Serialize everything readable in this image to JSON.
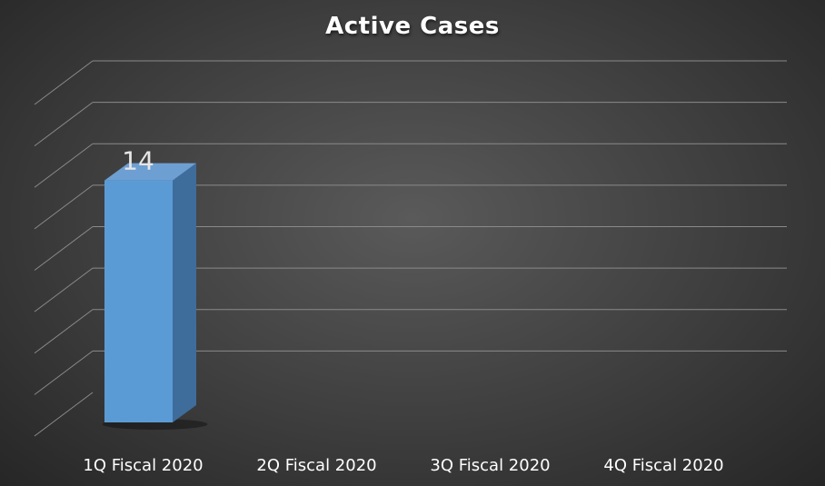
{
  "chart_data": {
    "type": "bar",
    "title": "Active Cases",
    "categories": [
      "1Q Fiscal 2020",
      "2Q Fiscal 2020",
      "3Q Fiscal 2020",
      "4Q Fiscal 2020"
    ],
    "values": [
      14,
      null,
      null,
      null
    ],
    "data_labels": [
      "14",
      "",
      "",
      ""
    ],
    "ylim": [
      0,
      16
    ],
    "grid": true,
    "legend": "none",
    "style": "3d-column",
    "colors": {
      "bar_front": "#5b9bd5",
      "bar_side": "#3e6d9c",
      "bar_top": "#6e9fd3",
      "grid": "#8a8a8a",
      "text": "#ffffff"
    }
  }
}
